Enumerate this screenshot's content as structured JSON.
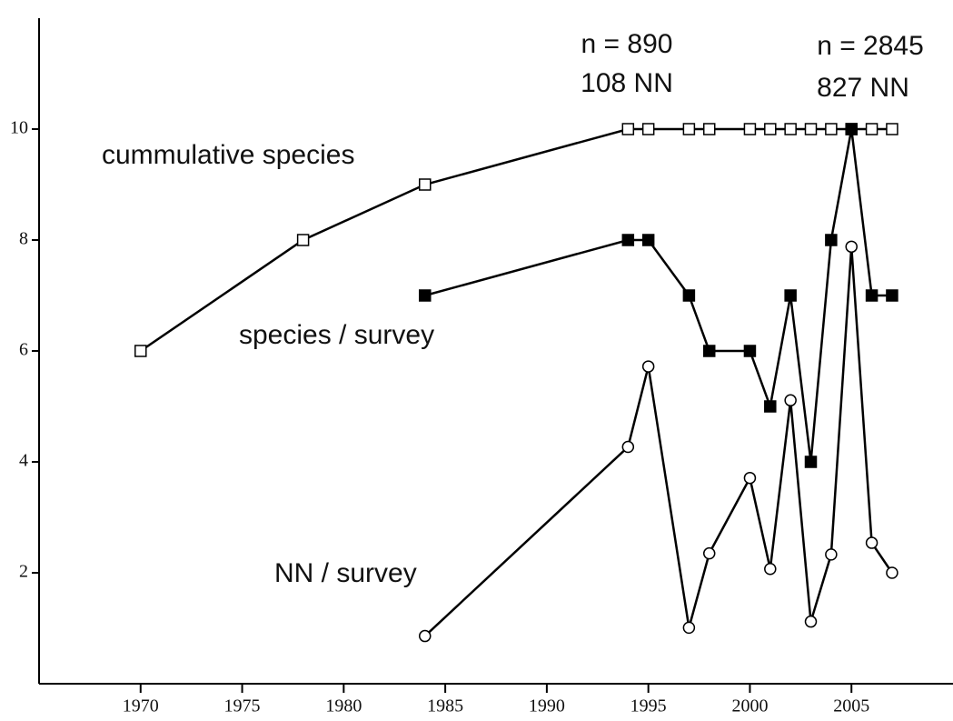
{
  "chart_data": {
    "type": "line",
    "xlim": [
      1965,
      2010
    ],
    "xticks": [
      1970,
      1975,
      1980,
      1985,
      1990,
      1995,
      2000,
      2005
    ],
    "ylim": [
      0,
      12
    ],
    "yticks": [
      2,
      4,
      6,
      8,
      10
    ],
    "annotations": [
      "n = 890",
      "108 NN",
      "n = 2845",
      "827 NN"
    ],
    "series": [
      {
        "name": "cummulative species",
        "color": "#000000",
        "marker": "open-square",
        "x": [
          1970,
          1978,
          1984,
          1994,
          1995,
          1997,
          1998,
          2000,
          2001,
          2002,
          2003,
          2004,
          2005,
          2006,
          2007
        ],
        "values": [
          6,
          8,
          9,
          10,
          10,
          10,
          10,
          10,
          10,
          10,
          10,
          10,
          10,
          10,
          10
        ]
      },
      {
        "name": "species / survey",
        "color": "#000000",
        "marker": "filled-square",
        "x": [
          1984,
          1994,
          1995,
          1997,
          1998,
          2000,
          2001,
          2002,
          2003,
          2004,
          2005,
          2006,
          2007
        ],
        "values": [
          7,
          8,
          8,
          7,
          6,
          6,
          5,
          7,
          4,
          8,
          10,
          7,
          7
        ]
      },
      {
        "name": "NN / survey",
        "color": "#000000",
        "marker": "open-circle",
        "x": [
          1984,
          1994,
          1995,
          1997,
          1998,
          2000,
          2001,
          2002,
          2003,
          2004,
          2005,
          2006,
          2007
        ],
        "values": [
          0.86,
          4.27,
          5.72,
          1.01,
          2.35,
          3.71,
          2.07,
          5.11,
          1.12,
          2.33,
          7.88,
          2.54,
          2.0
        ]
      }
    ]
  }
}
